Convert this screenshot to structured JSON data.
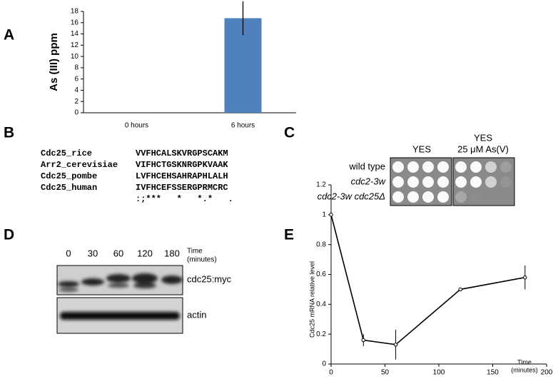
{
  "panel_labels": [
    "A",
    "B",
    "C",
    "D",
    "E"
  ],
  "chart_data": [
    {
      "type": "bar",
      "ylabel": "As (III) ppm",
      "categories": [
        "0 hours",
        "6 hours"
      ],
      "values": [
        0,
        16.8
      ],
      "errors": [
        0,
        3
      ],
      "color": "#4f81bd",
      "ylim": [
        0,
        18
      ],
      "yticks": [
        0,
        2,
        4,
        6,
        8,
        10,
        12,
        14,
        16,
        18
      ]
    },
    {
      "type": "line",
      "ylabel": "Cdc25 mRNA relative level",
      "xlabel_lines": [
        "Time",
        "(minutes)"
      ],
      "x": [
        0,
        30,
        60,
        120,
        180
      ],
      "values": [
        1,
        0.16,
        0.13,
        0.5,
        0.58
      ],
      "errors": [
        0,
        0.04,
        0.1,
        0,
        0.08
      ],
      "color": "#000000",
      "xlim": [
        0,
        200
      ],
      "xticks": [
        0,
        50,
        100,
        150,
        200
      ],
      "ylim": [
        0,
        1.2
      ],
      "yticks": [
        0,
        0.2,
        0.4,
        0.6,
        0.8,
        1,
        1.2
      ]
    }
  ],
  "alignment": {
    "rows": [
      {
        "name": "Cdc25_rice",
        "sequence": "VVFHCALSKVRGPSCAKM"
      },
      {
        "name": "Arr2_cerevisiae",
        "sequence": "VIFHCTGSKNRGPKVAAK"
      },
      {
        "name": "Cdc25_pombe",
        "sequence": "LVFHCEHSAHRAPHLALH"
      },
      {
        "name": "Cdc25_human",
        "sequence": "IVFHCEFSSERGPRMCRC"
      }
    ],
    "conservation": ":;***   *   *.*   ."
  },
  "spot_assay": {
    "headers": [
      "YES",
      "YES",
      "25 μM As(V)"
    ],
    "strains": [
      "wild type",
      "cdc2-3w",
      "cdc2-3w cdc25Δ"
    ]
  },
  "western": {
    "times": [
      "0",
      "30",
      "60",
      "120",
      "180"
    ],
    "time_label": [
      "Time",
      "(minutes)"
    ],
    "bands": [
      "cdc25:myc",
      "actin"
    ]
  }
}
